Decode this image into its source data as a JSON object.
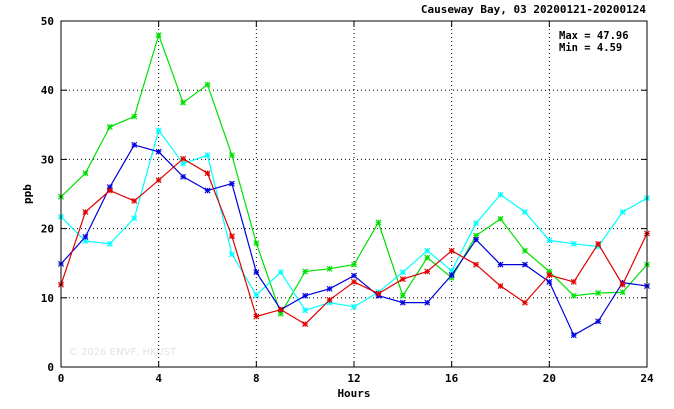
{
  "chart_data": {
    "type": "line",
    "title": "Causeway Bay, 03 20200121-20200124",
    "xlabel": "Hours",
    "ylabel": "ppb",
    "xlim": [
      0,
      24
    ],
    "ylim": [
      0,
      50
    ],
    "x_ticks": [
      0,
      4,
      8,
      12,
      16,
      20,
      24
    ],
    "y_ticks": [
      0,
      10,
      20,
      30,
      40,
      50
    ],
    "grid": true,
    "grid_style": "dotted",
    "stats": {
      "max_label": "Max = 47.96",
      "min_label": "Min =  4.59"
    },
    "watermark": "© 2026  ENVF, HKUST",
    "x": [
      0,
      1,
      2,
      3,
      4,
      5,
      6,
      7,
      8,
      9,
      10,
      11,
      12,
      13,
      14,
      15,
      16,
      17,
      18,
      19,
      20,
      21,
      22,
      23,
      24
    ],
    "series": [
      {
        "color": "#00e000",
        "values": [
          24.6,
          28.0,
          34.7,
          36.2,
          47.96,
          38.2,
          40.8,
          30.6,
          17.9,
          7.7,
          13.8,
          14.2,
          14.8,
          20.9,
          10.3,
          15.8,
          12.9,
          19.0,
          21.4,
          16.8,
          13.8,
          10.3,
          10.7,
          10.8,
          14.8
        ]
      },
      {
        "color": "#00ffff",
        "values": [
          21.7,
          18.2,
          17.8,
          21.5,
          34.2,
          29.4,
          30.6,
          16.3,
          10.4,
          13.7,
          8.2,
          9.3,
          8.7,
          10.8,
          13.7,
          16.8,
          13.9,
          20.8,
          24.9,
          22.4,
          18.3,
          17.8,
          17.4,
          22.4,
          24.4
        ]
      },
      {
        "color": "#0000e0",
        "values": [
          14.9,
          18.8,
          26.0,
          32.1,
          31.1,
          27.5,
          25.5,
          26.5,
          13.7,
          8.3,
          10.3,
          11.3,
          13.2,
          10.3,
          9.3,
          9.3,
          13.3,
          18.4,
          14.8,
          14.8,
          12.3,
          4.59,
          6.6,
          12.2,
          11.7
        ]
      },
      {
        "color": "#e00000",
        "values": [
          11.9,
          22.4,
          25.5,
          24.0,
          27.0,
          30.1,
          28.0,
          18.9,
          7.3,
          8.3,
          6.2,
          9.7,
          12.3,
          10.6,
          12.7,
          13.8,
          16.8,
          14.8,
          11.7,
          9.3,
          13.3,
          12.3,
          17.8,
          11.9,
          19.3
        ]
      }
    ]
  }
}
